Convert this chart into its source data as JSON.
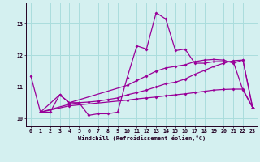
{
  "xlabel": "Windchill (Refroidissement éolien,°C)",
  "background_color": "#d4f0f0",
  "line_color": "#990099",
  "grid_color": "#aadddd",
  "xlim": [
    -0.5,
    23.5
  ],
  "ylim": [
    9.75,
    13.65
  ],
  "xticks": [
    0,
    1,
    2,
    3,
    4,
    5,
    6,
    7,
    8,
    9,
    10,
    11,
    12,
    13,
    14,
    15,
    16,
    17,
    18,
    19,
    20,
    21,
    22,
    23
  ],
  "yticks": [
    10,
    11,
    12,
    13
  ],
  "line1_x": [
    0,
    1,
    2,
    3,
    4,
    5,
    6,
    7,
    8,
    9,
    10,
    11,
    12,
    13,
    14,
    15,
    16,
    17,
    18,
    19,
    20,
    21,
    22,
    23
  ],
  "line1_y": [
    11.35,
    10.2,
    10.2,
    10.75,
    10.5,
    10.5,
    10.1,
    10.15,
    10.15,
    10.2,
    11.3,
    12.3,
    12.2,
    13.35,
    13.15,
    12.15,
    12.2,
    11.75,
    11.75,
    11.8,
    11.8,
    11.8,
    10.9,
    10.35
  ],
  "line2_x": [
    1,
    3,
    4,
    10,
    11,
    12,
    13,
    14,
    15,
    16,
    17,
    18,
    19,
    20,
    21,
    22,
    23
  ],
  "line2_y": [
    10.2,
    10.75,
    10.5,
    11.05,
    11.2,
    11.35,
    11.5,
    11.6,
    11.65,
    11.7,
    11.8,
    11.85,
    11.87,
    11.85,
    11.75,
    11.85,
    10.35
  ],
  "line3_x": [
    1,
    4,
    5,
    6,
    7,
    8,
    9,
    10,
    11,
    12,
    13,
    14,
    15,
    16,
    17,
    18,
    19,
    20,
    21,
    22,
    23
  ],
  "line3_y": [
    10.2,
    10.45,
    10.5,
    10.52,
    10.55,
    10.6,
    10.65,
    10.75,
    10.82,
    10.9,
    11.0,
    11.1,
    11.15,
    11.25,
    11.4,
    11.52,
    11.65,
    11.75,
    11.83,
    11.85,
    10.35
  ],
  "line4_x": [
    1,
    4,
    10,
    11,
    12,
    13,
    14,
    15,
    16,
    17,
    18,
    19,
    20,
    21,
    22,
    23
  ],
  "line4_y": [
    10.2,
    10.4,
    10.58,
    10.62,
    10.65,
    10.68,
    10.72,
    10.75,
    10.78,
    10.82,
    10.86,
    10.9,
    10.92,
    10.93,
    10.93,
    10.35
  ]
}
